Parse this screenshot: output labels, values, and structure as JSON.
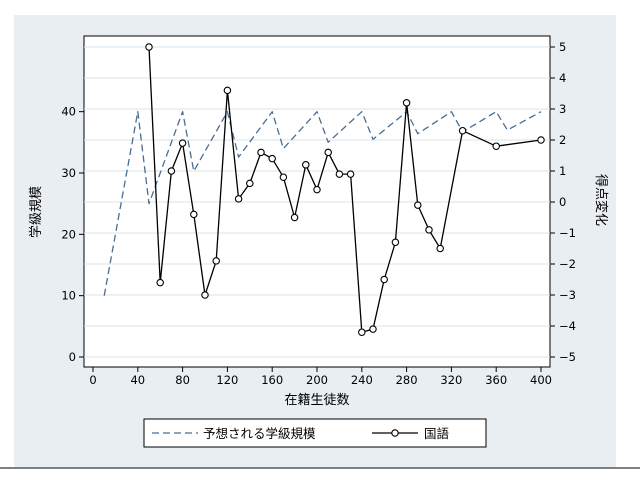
{
  "chart_data": {
    "type": "line",
    "xlabel": "在籍生徒数",
    "ylabel_left": "学級規模",
    "ylabel_right": "得点変化",
    "xlim": [
      0,
      400
    ],
    "ylim_left": [
      0,
      45
    ],
    "ylim_right": [
      -5,
      5
    ],
    "x_ticks": [
      0,
      40,
      80,
      120,
      160,
      200,
      240,
      280,
      320,
      360,
      400
    ],
    "y_ticks_left": [
      0,
      10,
      20,
      30,
      40
    ],
    "y_ticks_right": [
      -5,
      -4,
      -3,
      -2,
      -1,
      0,
      1,
      2,
      3,
      4,
      5
    ],
    "grid": "horizontal",
    "legend_position": "bottom",
    "series": [
      {
        "name": "予想される学級規模",
        "axis": "left",
        "style": "dashed",
        "color": "#4a6d93",
        "x": [
          10,
          40,
          50,
          80,
          90,
          120,
          130,
          160,
          170,
          200,
          210,
          240,
          250,
          280,
          290,
          320,
          330,
          360,
          370,
          400
        ],
        "y": [
          10,
          40,
          25,
          40,
          30.3,
          40,
          32.6,
          40,
          34,
          40,
          35,
          40,
          35.5,
          40,
          36.4,
          40,
          36.7,
          40,
          37,
          40
        ]
      },
      {
        "name": "国語",
        "axis": "right",
        "style": "solid-circle",
        "color": "#000000",
        "x": [
          50,
          60,
          70,
          80,
          90,
          100,
          110,
          120,
          130,
          140,
          150,
          160,
          170,
          180,
          190,
          200,
          210,
          220,
          230,
          240,
          250,
          260,
          270,
          280,
          290,
          300,
          310,
          330,
          360,
          400
        ],
        "y": [
          5.0,
          -2.6,
          1.0,
          1.9,
          -0.4,
          -3.0,
          -1.9,
          3.6,
          0.1,
          0.6,
          1.6,
          1.4,
          0.8,
          -0.5,
          1.2,
          0.4,
          1.6,
          0.9,
          0.9,
          -4.2,
          -4.1,
          -2.5,
          -1.3,
          3.2,
          -0.1,
          -0.9,
          -1.5,
          2.3,
          1.8,
          2.0
        ]
      }
    ]
  }
}
